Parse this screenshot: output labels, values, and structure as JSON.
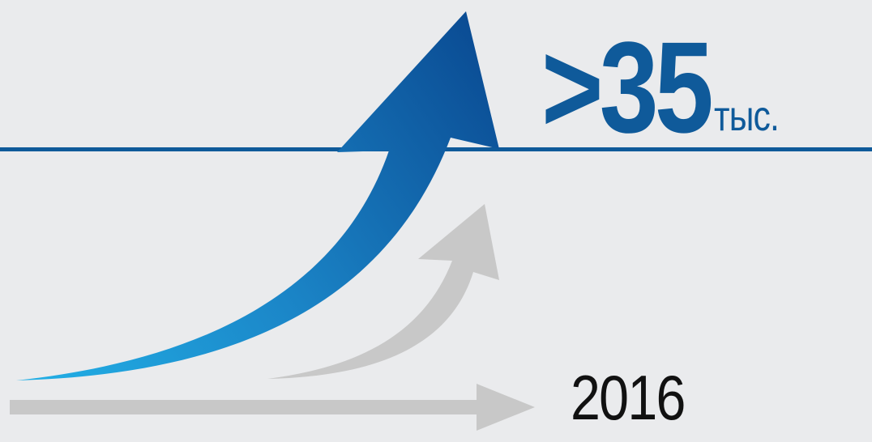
{
  "headline": {
    "value": ">35",
    "unit": "тыс."
  },
  "year_label": "2016",
  "colors": {
    "background": "#eaebed",
    "baseline": "#0f5a9a",
    "arrow_blue_dark": "#0b4f97",
    "arrow_blue_light": "#1ea8e0",
    "arrow_gray": "#c8c8c8",
    "headline_text": "#0f5a9a",
    "year_text": "#111111"
  }
}
